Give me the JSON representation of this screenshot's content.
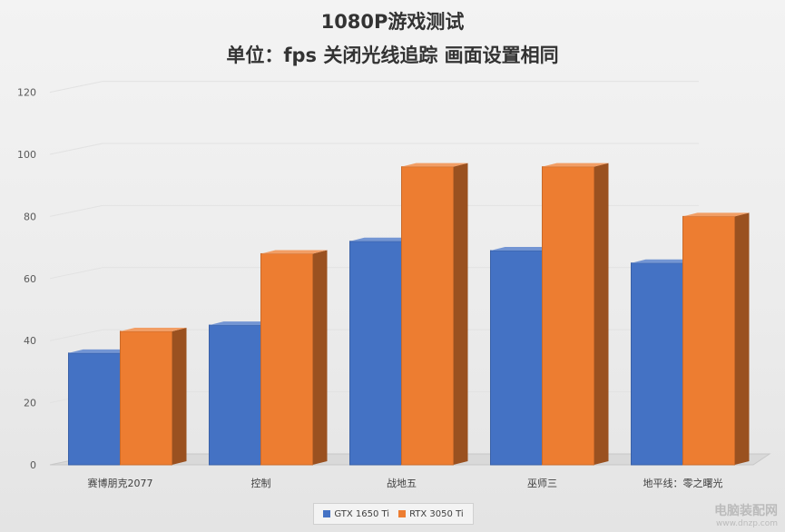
{
  "chart_data": {
    "type": "bar",
    "title_line1": "1080P游戏测试",
    "title_line2": "单位：fps 关闭光线追踪 画面设置相同",
    "categories": [
      "赛博朋克2077",
      "控制",
      "战地五",
      "巫师三",
      "地平线：零之曙光"
    ],
    "series": [
      {
        "name": "GTX 1650 Ti",
        "color": "#4472c4",
        "values": [
          36,
          45,
          72,
          69,
          65
        ]
      },
      {
        "name": "RTX 3050 Ti",
        "color": "#ed7d31",
        "values": [
          43,
          68,
          96,
          96,
          80
        ]
      }
    ],
    "ylim": [
      0,
      120
    ],
    "yticks": [
      "0",
      "20",
      "40",
      "60",
      "80",
      "100",
      "120"
    ],
    "grid": true,
    "legend_position": "bottom"
  },
  "watermark": {
    "main": "电脑装配网",
    "sub": "www.dnzp.com"
  }
}
